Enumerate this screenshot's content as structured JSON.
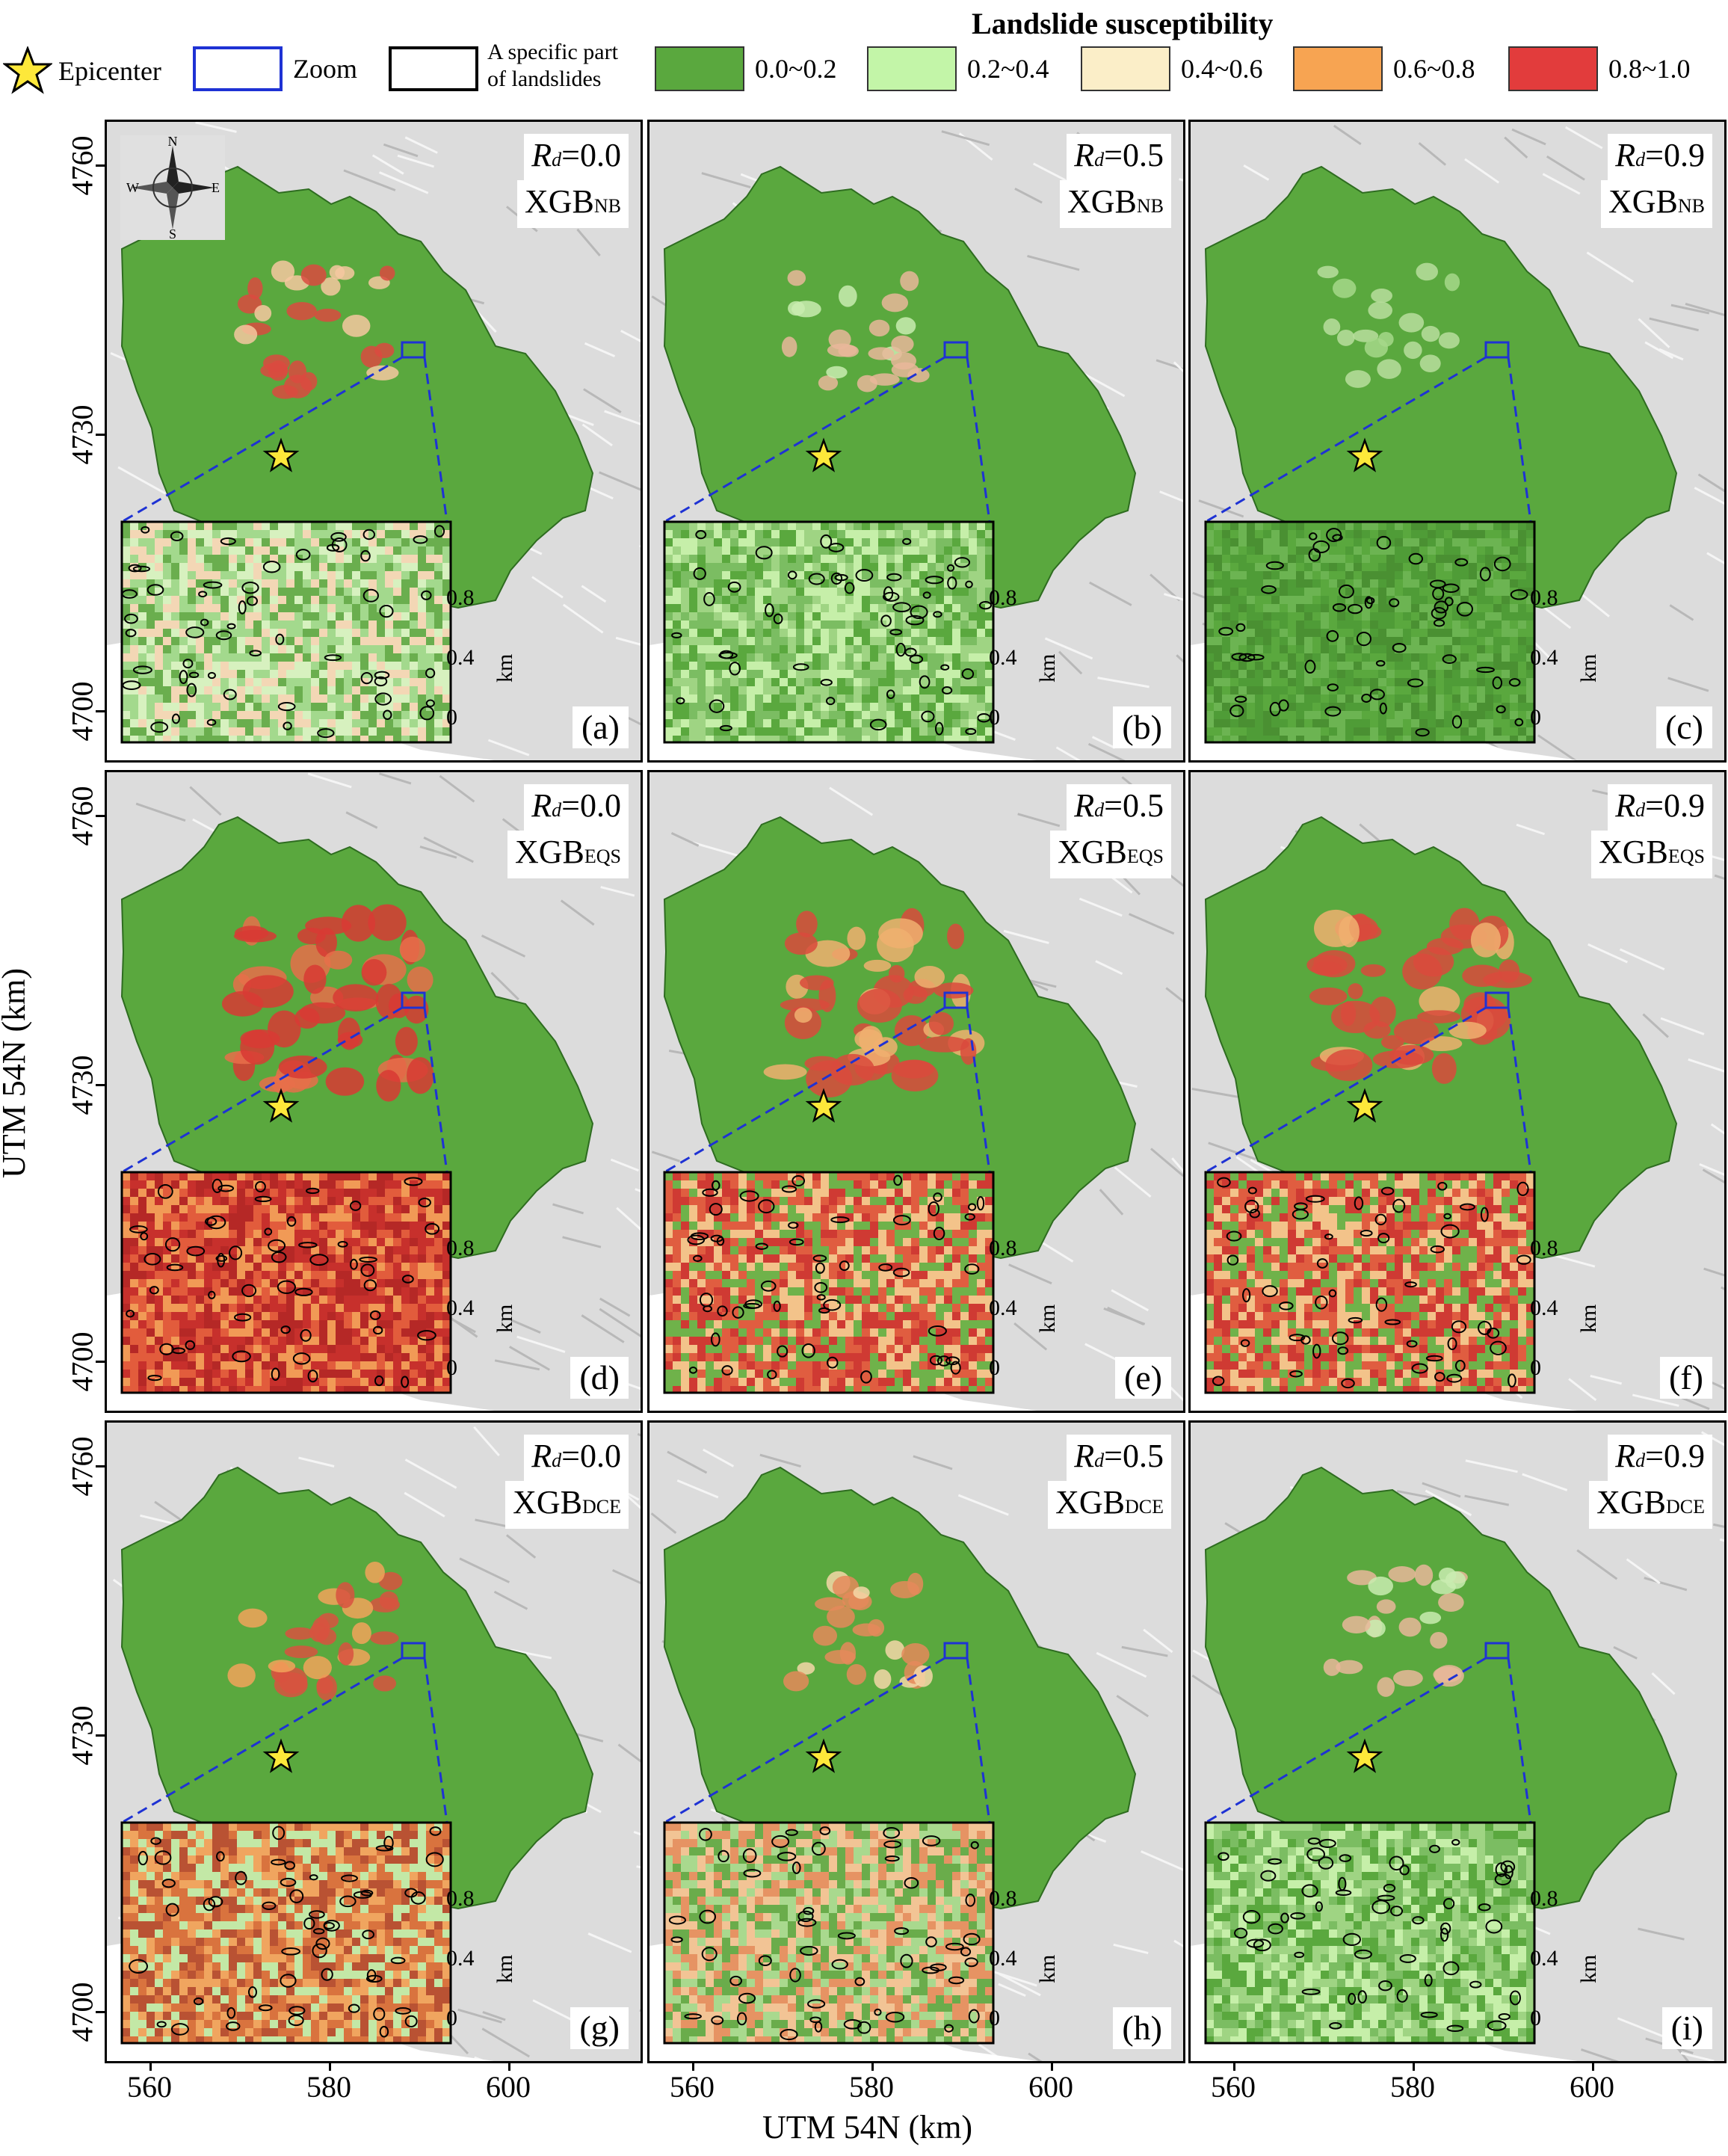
{
  "legend": {
    "title": "Landslide susceptibility",
    "epicenter_label": "Epicenter",
    "zoom_label": "Zoom",
    "part_label_line1": "A specific part",
    "part_label_line2": "of landslides",
    "classes": [
      {
        "label": "0.0~0.2",
        "color": "#5aa83e"
      },
      {
        "label": "0.2~0.4",
        "color": "#c3f5a8"
      },
      {
        "label": "0.4~0.6",
        "color": "#fbeec8"
      },
      {
        "label": "0.6~0.8",
        "color": "#f7a452"
      },
      {
        "label": "0.8~1.0",
        "color": "#e23c3c"
      }
    ],
    "zoom_color": "#1e32d4",
    "epicenter_color": "#fde83a"
  },
  "axes": {
    "y_title": "UTM 54N (km)",
    "x_title": "UTM 54N (km)",
    "y_ticks": [
      "4760",
      "4730",
      "4700"
    ],
    "x_ticks": [
      "560",
      "580",
      "600"
    ]
  },
  "compass": {
    "n": "N",
    "s": "S",
    "e": "E",
    "w": "W"
  },
  "scale": {
    "ticks": [
      "0.8",
      "0.4",
      "0"
    ],
    "unit": "km"
  },
  "panels": [
    {
      "letter": "(a)",
      "rd_prefix": "R",
      "rd_sub": "d",
      "rd_value": "=0.0",
      "model": "XGB",
      "model_sub": "NB",
      "level": "low-high"
    },
    {
      "letter": "(b)",
      "rd_prefix": "R",
      "rd_sub": "d",
      "rd_value": "=0.5",
      "model": "XGB",
      "model_sub": "NB",
      "level": "low"
    },
    {
      "letter": "(c)",
      "rd_prefix": "R",
      "rd_sub": "d",
      "rd_value": "=0.9",
      "model": "XGB",
      "model_sub": "NB",
      "level": "lowest"
    },
    {
      "letter": "(d)",
      "rd_prefix": "R",
      "rd_sub": "d",
      "rd_value": "=0.0",
      "model": "XGB",
      "model_sub": "EQS",
      "level": "very-high"
    },
    {
      "letter": "(e)",
      "rd_prefix": "R",
      "rd_sub": "d",
      "rd_value": "=0.5",
      "model": "XGB",
      "model_sub": "EQS",
      "level": "high"
    },
    {
      "letter": "(f)",
      "rd_prefix": "R",
      "rd_sub": "d",
      "rd_value": "=0.9",
      "model": "XGB",
      "model_sub": "EQS",
      "level": "high"
    },
    {
      "letter": "(g)",
      "rd_prefix": "R",
      "rd_sub": "d",
      "rd_value": "=0.0",
      "model": "XGB",
      "model_sub": "DCE",
      "level": "medium-high"
    },
    {
      "letter": "(h)",
      "rd_prefix": "R",
      "rd_sub": "d",
      "rd_value": "=0.5",
      "model": "XGB",
      "model_sub": "DCE",
      "level": "medium"
    },
    {
      "letter": "(i)",
      "rd_prefix": "R",
      "rd_sub": "d",
      "rd_value": "=0.9",
      "model": "XGB",
      "model_sub": "DCE",
      "level": "low"
    }
  ]
}
